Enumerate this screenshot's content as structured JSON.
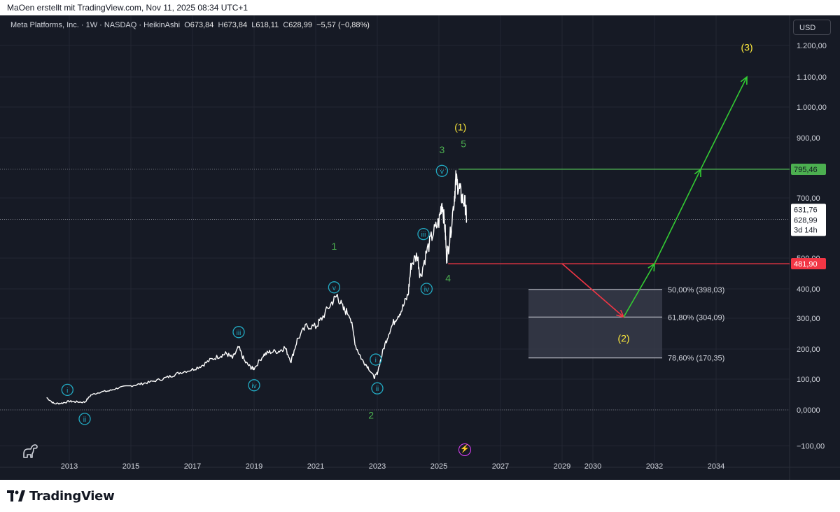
{
  "header": {
    "attribution": "MaOen erstellt mit TradingView.com, Nov 11, 2025 08:34 UTC+1"
  },
  "legend": {
    "symbol": "Meta Platforms, Inc. · 1W · NASDAQ · HeikinAshi",
    "open_label": "O",
    "open": "673,84",
    "high_label": "H",
    "high": "673,84",
    "low_label": "L",
    "low": "618,11",
    "close_label": "C",
    "close": "628,99",
    "change": "−5,57 (−0,88%)"
  },
  "currency": "USD",
  "footer": {
    "brand": "TradingView"
  },
  "colors": {
    "background": "#161a25",
    "price_line": "#ffffff",
    "wave_label_green": "#4caf50",
    "wave_label_yellow": "#ffeb3b",
    "sub_wave_cyan": "#22abc4",
    "resistance": "#4caf50",
    "support": "#f23645",
    "projection_up": "#33cc33",
    "projection_down": "#f23645"
  },
  "chart_data": {
    "type": "line",
    "title": "",
    "xlabel": "",
    "ylabel": "",
    "x_ticks": [
      "2013",
      "2015",
      "2017",
      "2019",
      "2021",
      "2023",
      "2025",
      "2027",
      "2029",
      "2030",
      "2032",
      "2034"
    ],
    "y_ticks": [
      "−100,00",
      "0,0000",
      "100,00",
      "200,00",
      "300,00",
      "400,00",
      "500,00",
      "700,00",
      "900,00",
      "1.000,00",
      "1.100,00",
      "1.200,00"
    ],
    "ylim": [
      -130,
      1260
    ],
    "xlim": [
      2012.0,
      2036.0
    ],
    "grid": true,
    "series": [
      {
        "values_xy": [
          [
            2012.4,
            40
          ],
          [
            2012.6,
            20
          ],
          [
            2012.8,
            22
          ],
          [
            2013.0,
            28
          ],
          [
            2013.2,
            26
          ],
          [
            2013.5,
            25
          ],
          [
            2013.7,
            48
          ],
          [
            2014.0,
            58
          ],
          [
            2014.3,
            62
          ],
          [
            2014.6,
            72
          ],
          [
            2015.0,
            78
          ],
          [
            2015.3,
            84
          ],
          [
            2015.6,
            90
          ],
          [
            2016.0,
            100
          ],
          [
            2016.3,
            110
          ],
          [
            2016.6,
            122
          ],
          [
            2017.0,
            132
          ],
          [
            2017.3,
            145
          ],
          [
            2017.6,
            165
          ],
          [
            2017.9,
            178
          ],
          [
            2018.1,
            185
          ],
          [
            2018.3,
            170
          ],
          [
            2018.5,
            205
          ],
          [
            2018.7,
            158
          ],
          [
            2018.9,
            138
          ],
          [
            2019.0,
            135
          ],
          [
            2019.3,
            180
          ],
          [
            2019.5,
            190
          ],
          [
            2019.8,
            193
          ],
          [
            2020.0,
            205
          ],
          [
            2020.2,
            160
          ],
          [
            2020.4,
            230
          ],
          [
            2020.7,
            275
          ],
          [
            2021.0,
            272
          ],
          [
            2021.2,
            300
          ],
          [
            2021.5,
            350
          ],
          [
            2021.7,
            378
          ],
          [
            2021.9,
            330
          ],
          [
            2022.1,
            315
          ],
          [
            2022.3,
            210
          ],
          [
            2022.5,
            165
          ],
          [
            2022.7,
            140
          ],
          [
            2022.9,
            105
          ],
          [
            2023.0,
            120
          ],
          [
            2023.2,
            200
          ],
          [
            2023.4,
            260
          ],
          [
            2023.6,
            300
          ],
          [
            2023.8,
            330
          ],
          [
            2024.0,
            380
          ],
          [
            2024.1,
            480
          ],
          [
            2024.3,
            510
          ],
          [
            2024.4,
            440
          ],
          [
            2024.6,
            520
          ],
          [
            2024.8,
            580
          ],
          [
            2025.0,
            620
          ],
          [
            2025.1,
            690
          ],
          [
            2025.2,
            600
          ],
          [
            2025.25,
            500
          ],
          [
            2025.35,
            560
          ],
          [
            2025.5,
            700
          ],
          [
            2025.55,
            760
          ],
          [
            2025.65,
            735
          ],
          [
            2025.75,
            700
          ],
          [
            2025.85,
            680
          ],
          [
            2025.9,
            629
          ]
        ]
      }
    ],
    "price_tags": {
      "resistance": "795,46",
      "support": "481,90",
      "last_price": "631,76",
      "close": "628,99",
      "countdown": "3d 14h"
    },
    "fibonacci": [
      {
        "label": "50,00% (398,03)",
        "value": 398.03
      },
      {
        "label": "61,80% (304,09)",
        "value": 304.09
      },
      {
        "label": "78,60% (170,35)",
        "value": 170.35
      }
    ],
    "resistance_level": 795.46,
    "support_level": 481.9,
    "projection": {
      "down_from": [
        2029.0,
        481.9
      ],
      "down_to": [
        2031.0,
        304.09
      ],
      "up_to_mid": [
        2032.0,
        481.9
      ],
      "up_cross": [
        2033.5,
        795.46
      ],
      "up_end": [
        2035.0,
        1100
      ]
    },
    "wave_labels": [
      {
        "text": "(1)",
        "x": 2025.7,
        "y": 935,
        "style": "yellow"
      },
      {
        "text": "(2)",
        "x": 2031.0,
        "y": 235,
        "style": "yellow"
      },
      {
        "text": "(3)",
        "x": 2035.0,
        "y": 1195,
        "style": "yellow"
      },
      {
        "text": "1",
        "x": 2021.6,
        "y": 540,
        "style": "green"
      },
      {
        "text": "2",
        "x": 2022.8,
        "y": -15,
        "style": "green"
      },
      {
        "text": "3",
        "x": 2025.1,
        "y": 860,
        "style": "green"
      },
      {
        "text": "4",
        "x": 2025.3,
        "y": 435,
        "style": "green"
      },
      {
        "text": "5",
        "x": 2025.8,
        "y": 880,
        "style": "green"
      }
    ],
    "sub_wave_labels": [
      {
        "text": "i",
        "x": 2012.95,
        "y": 65
      },
      {
        "text": "ii",
        "x": 2013.5,
        "y": -25
      },
      {
        "text": "iii",
        "x": 2018.5,
        "y": 255
      },
      {
        "text": "iv",
        "x": 2019.0,
        "y": 80
      },
      {
        "text": "v",
        "x": 2021.6,
        "y": 405
      },
      {
        "text": "i",
        "x": 2022.95,
        "y": 165
      },
      {
        "text": "ii",
        "x": 2023.0,
        "y": 70
      },
      {
        "text": "iii",
        "x": 2024.5,
        "y": 580
      },
      {
        "text": "iv",
        "x": 2024.6,
        "y": 400
      },
      {
        "text": "v",
        "x": 2025.1,
        "y": 790
      }
    ]
  }
}
